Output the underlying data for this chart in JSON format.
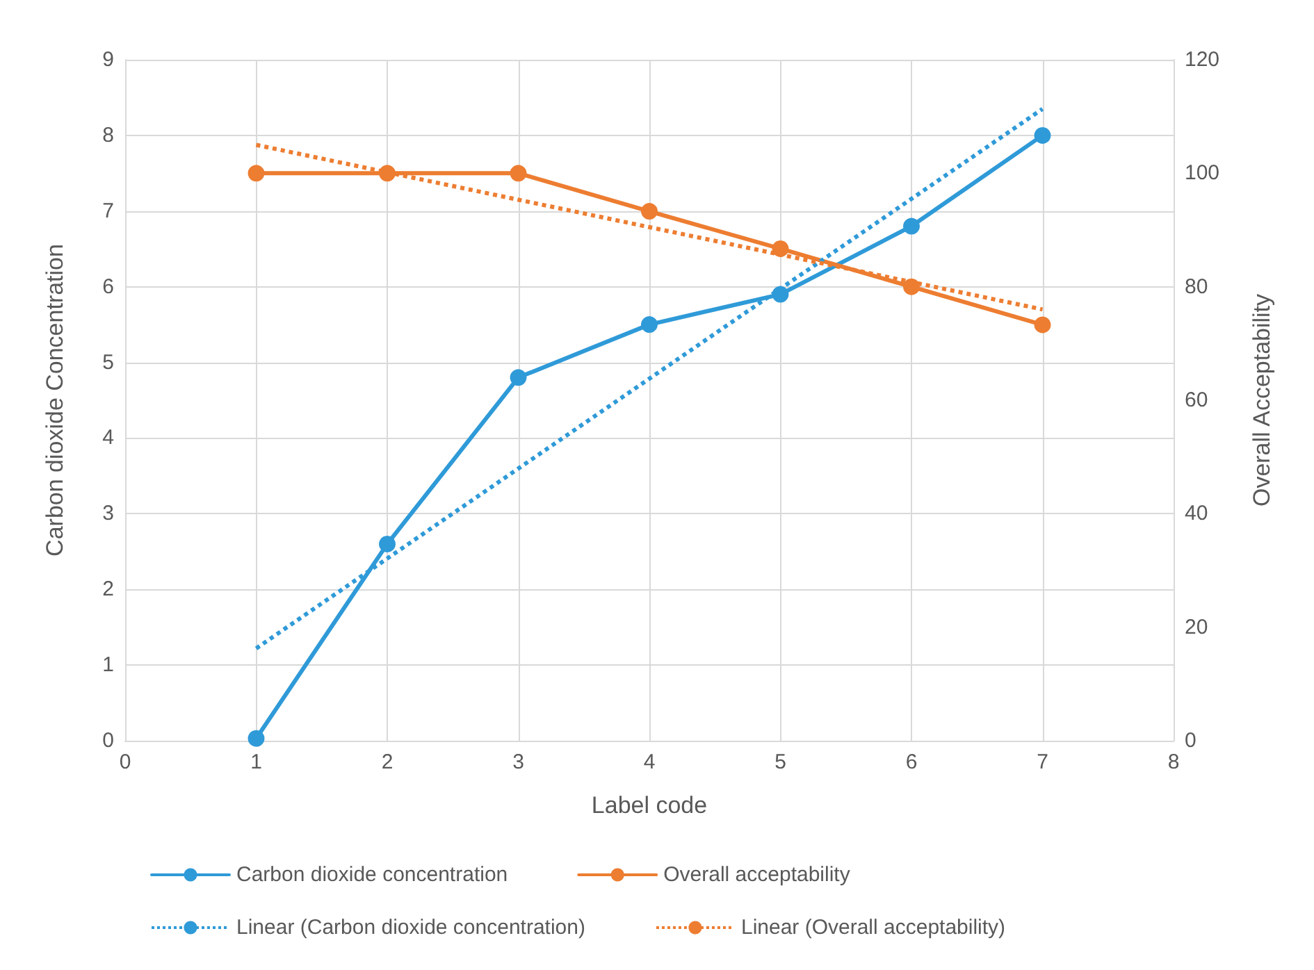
{
  "chart_data": {
    "type": "line",
    "xlabel": "Label code",
    "ylabel": "Carbon dioxide Concentration",
    "y2label": "Overall Acceptability",
    "xlim": [
      0,
      8
    ],
    "xticks": [
      0,
      1,
      2,
      3,
      4,
      5,
      6,
      7,
      8
    ],
    "ylim": [
      0,
      9
    ],
    "yticks": [
      0,
      1,
      2,
      3,
      4,
      5,
      6,
      7,
      8,
      9
    ],
    "y2lim": [
      0,
      120
    ],
    "y2ticks": [
      0,
      20,
      40,
      60,
      80,
      100,
      120
    ],
    "grid": true,
    "legend": "bottom",
    "marker": "circle",
    "line_style": "solid",
    "series": [
      {
        "name": "Carbon dioxide concentration",
        "color": "#2f9ad8",
        "x": [
          1,
          2,
          3,
          4,
          5,
          6,
          7
        ],
        "values": [
          0.03,
          2.6,
          4.8,
          5.5,
          5.9,
          6.8,
          8.0
        ]
      },
      {
        "name": "Overall acceptability",
        "color": "#ed7d31",
        "axis": "y2",
        "x": [
          1,
          2,
          3,
          4,
          5,
          6,
          7
        ],
        "values": [
          100,
          100,
          100,
          93.3,
          86.7,
          80,
          73.3
        ]
      },
      {
        "name": "Linear (Carbon dioxide concentration)",
        "color": "#2f9ad8",
        "x": [
          1,
          7
        ],
        "values": [
          1.22,
          8.35
        ],
        "marker": "none",
        "line_style": "dotted"
      },
      {
        "name": "Linear (Overall acceptability)",
        "color": "#ed7d31",
        "axis": "y2",
        "x": [
          1,
          7
        ],
        "values": [
          105,
          76
        ],
        "marker": "none",
        "line_style": "dotted"
      }
    ]
  }
}
